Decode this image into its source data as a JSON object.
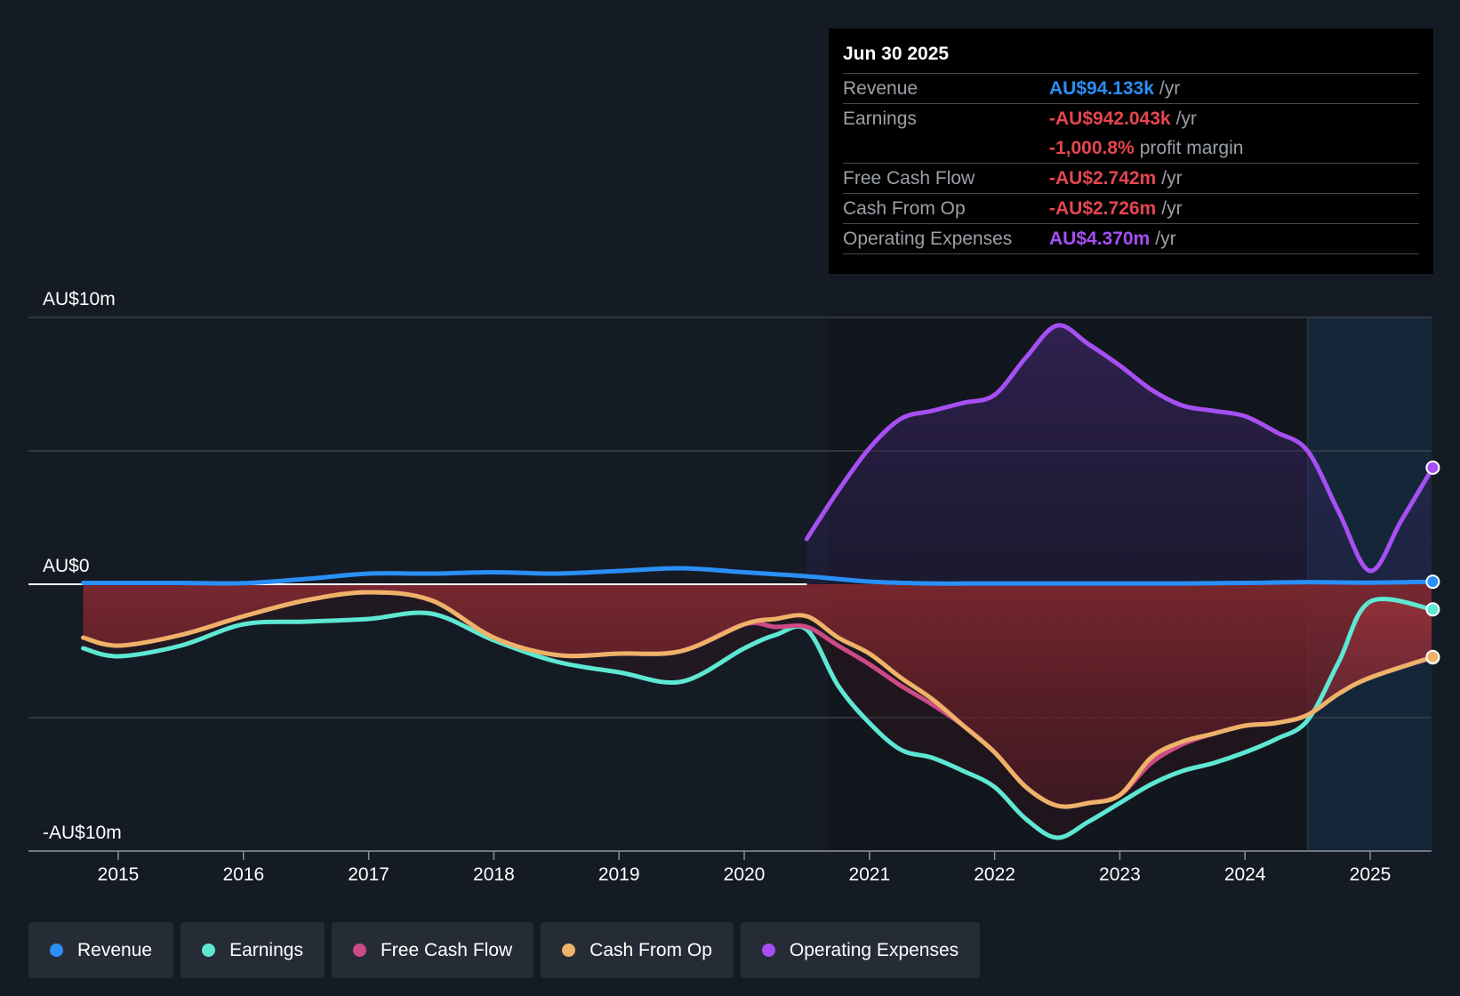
{
  "tooltip": {
    "date": "Jun 30 2025",
    "rows": [
      {
        "label": "Revenue",
        "value": "AU$94.133k",
        "unit": "/yr",
        "color": "#2a8ff7"
      },
      {
        "label": "Earnings",
        "value": "-AU$942.043k",
        "unit": "/yr",
        "color": "#e64650"
      },
      {
        "label": "",
        "value": "-1,000.8%",
        "unit": "profit margin",
        "color": "#e64650"
      },
      {
        "label": "Free Cash Flow",
        "value": "-AU$2.742m",
        "unit": "/yr",
        "color": "#e64650"
      },
      {
        "label": "Cash From Op",
        "value": "-AU$2.726m",
        "unit": "/yr",
        "color": "#e64650"
      },
      {
        "label": "Operating Expenses",
        "value": "AU$4.370m",
        "unit": "/yr",
        "color": "#a64ff2"
      }
    ]
  },
  "legend": [
    {
      "label": "Revenue",
      "color": "#2a8ff7"
    },
    {
      "label": "Earnings",
      "color": "#5ee8d4"
    },
    {
      "label": "Free Cash Flow",
      "color": "#cc4a86"
    },
    {
      "label": "Cash From Op",
      "color": "#eeb268"
    },
    {
      "label": "Operating Expenses",
      "color": "#a64ff2"
    }
  ],
  "chart_data": {
    "type": "line",
    "title": "",
    "xlabel": "",
    "ylabel": "",
    "y_unit": "AU$m",
    "ylim": [
      -10,
      10
    ],
    "xlim": [
      2014.3,
      2025.5
    ],
    "y_tick_labels": [
      {
        "value": 10,
        "label": "AU$10m"
      },
      {
        "value": 0,
        "label": "AU$0"
      },
      {
        "value": -10,
        "label": "-AU$10m"
      }
    ],
    "gridlines": [
      10,
      5,
      0,
      -5,
      -10
    ],
    "x_ticks": [
      2015,
      2016,
      2017,
      2018,
      2019,
      2020,
      2021,
      2022,
      2023,
      2024,
      2025
    ],
    "x_tick_labels": [
      "2015",
      "2016",
      "2017",
      "2018",
      "2019",
      "2020",
      "2021",
      "2022",
      "2023",
      "2024",
      "2025"
    ],
    "forecast_region_start": 2024.5,
    "series": [
      {
        "name": "Operating Expenses",
        "color": "#a64ff2",
        "fill": true,
        "points": [
          [
            2020.5,
            1.7
          ],
          [
            2020.75,
            3.5
          ],
          [
            2021.0,
            5.1
          ],
          [
            2021.25,
            6.2
          ],
          [
            2021.5,
            6.5
          ],
          [
            2021.75,
            6.8
          ],
          [
            2022.0,
            7.1
          ],
          [
            2022.25,
            8.5
          ],
          [
            2022.5,
            9.7
          ],
          [
            2022.75,
            9.0
          ],
          [
            2023.0,
            8.2
          ],
          [
            2023.25,
            7.3
          ],
          [
            2023.5,
            6.7
          ],
          [
            2023.75,
            6.5
          ],
          [
            2024.0,
            6.3
          ],
          [
            2024.25,
            5.7
          ],
          [
            2024.5,
            5.0
          ],
          [
            2024.75,
            2.7
          ],
          [
            2025.0,
            0.5
          ],
          [
            2025.25,
            2.4
          ],
          [
            2025.5,
            4.37
          ]
        ]
      },
      {
        "name": "Revenue",
        "color": "#2a8ff7",
        "fill": false,
        "points": [
          [
            2014.72,
            0.05
          ],
          [
            2015.0,
            0.05
          ],
          [
            2015.5,
            0.05
          ],
          [
            2016.0,
            0.04
          ],
          [
            2016.5,
            0.2
          ],
          [
            2017.0,
            0.4
          ],
          [
            2017.5,
            0.4
          ],
          [
            2018.0,
            0.45
          ],
          [
            2018.5,
            0.4
          ],
          [
            2019.0,
            0.5
          ],
          [
            2019.5,
            0.6
          ],
          [
            2020.0,
            0.45
          ],
          [
            2020.5,
            0.3
          ],
          [
            2021.0,
            0.1
          ],
          [
            2021.5,
            0.03
          ],
          [
            2022.0,
            0.03
          ],
          [
            2022.5,
            0.03
          ],
          [
            2023.0,
            0.03
          ],
          [
            2023.5,
            0.03
          ],
          [
            2024.0,
            0.05
          ],
          [
            2024.5,
            0.08
          ],
          [
            2025.0,
            0.06
          ],
          [
            2025.5,
            0.094
          ]
        ]
      },
      {
        "name": "Earnings",
        "color": "#5ee8d4",
        "fill": true,
        "points": [
          [
            2014.72,
            -2.4
          ],
          [
            2015.0,
            -2.7
          ],
          [
            2015.5,
            -2.3
          ],
          [
            2016.0,
            -1.5
          ],
          [
            2016.5,
            -1.4
          ],
          [
            2017.0,
            -1.3
          ],
          [
            2017.5,
            -1.1
          ],
          [
            2018.0,
            -2.1
          ],
          [
            2018.5,
            -2.9
          ],
          [
            2019.0,
            -3.3
          ],
          [
            2019.5,
            -3.65
          ],
          [
            2020.0,
            -2.4
          ],
          [
            2020.25,
            -1.9
          ],
          [
            2020.5,
            -1.7
          ],
          [
            2020.75,
            -3.8
          ],
          [
            2021.0,
            -5.2
          ],
          [
            2021.25,
            -6.2
          ],
          [
            2021.5,
            -6.5
          ],
          [
            2021.75,
            -7.0
          ],
          [
            2022.0,
            -7.6
          ],
          [
            2022.25,
            -8.8
          ],
          [
            2022.5,
            -9.5
          ],
          [
            2022.75,
            -8.9
          ],
          [
            2023.0,
            -8.2
          ],
          [
            2023.25,
            -7.5
          ],
          [
            2023.5,
            -7.0
          ],
          [
            2023.75,
            -6.7
          ],
          [
            2024.0,
            -6.3
          ],
          [
            2024.25,
            -5.8
          ],
          [
            2024.5,
            -5.1
          ],
          [
            2024.75,
            -2.9
          ],
          [
            2025.0,
            -0.65
          ],
          [
            2025.5,
            -0.942
          ]
        ]
      },
      {
        "name": "Free Cash Flow",
        "color": "#cc4a86",
        "fill": true,
        "points": [
          [
            2014.72,
            -2.0
          ],
          [
            2015.0,
            -2.3
          ],
          [
            2015.5,
            -1.9
          ],
          [
            2016.0,
            -1.2
          ],
          [
            2016.5,
            -0.6
          ],
          [
            2017.0,
            -0.3
          ],
          [
            2017.5,
            -0.6
          ],
          [
            2018.0,
            -2.0
          ],
          [
            2018.5,
            -2.65
          ],
          [
            2019.0,
            -2.6
          ],
          [
            2019.5,
            -2.5
          ],
          [
            2020.0,
            -1.5
          ],
          [
            2020.25,
            -1.6
          ],
          [
            2020.5,
            -1.6
          ],
          [
            2020.75,
            -2.3
          ],
          [
            2021.0,
            -3.0
          ],
          [
            2021.25,
            -3.8
          ],
          [
            2021.5,
            -4.5
          ],
          [
            2021.75,
            -5.3
          ],
          [
            2022.0,
            -6.3
          ],
          [
            2022.25,
            -7.6
          ],
          [
            2022.5,
            -8.3
          ],
          [
            2022.75,
            -8.2
          ],
          [
            2023.0,
            -7.9
          ],
          [
            2023.25,
            -6.7
          ],
          [
            2023.5,
            -6.0
          ],
          [
            2023.75,
            -5.6
          ],
          [
            2024.0,
            -5.3
          ],
          [
            2024.25,
            -5.2
          ],
          [
            2024.5,
            -4.9
          ],
          [
            2024.75,
            -4.1
          ],
          [
            2025.0,
            -3.5
          ],
          [
            2025.5,
            -2.742
          ]
        ]
      },
      {
        "name": "Cash From Op",
        "color": "#eeb268",
        "fill": true,
        "points": [
          [
            2014.72,
            -2.0
          ],
          [
            2015.0,
            -2.3
          ],
          [
            2015.5,
            -1.9
          ],
          [
            2016.0,
            -1.2
          ],
          [
            2016.5,
            -0.6
          ],
          [
            2017.0,
            -0.3
          ],
          [
            2017.5,
            -0.6
          ],
          [
            2018.0,
            -2.0
          ],
          [
            2018.5,
            -2.65
          ],
          [
            2019.0,
            -2.6
          ],
          [
            2019.5,
            -2.5
          ],
          [
            2020.0,
            -1.5
          ],
          [
            2020.25,
            -1.3
          ],
          [
            2020.5,
            -1.2
          ],
          [
            2020.75,
            -2.0
          ],
          [
            2021.0,
            -2.6
          ],
          [
            2021.25,
            -3.5
          ],
          [
            2021.5,
            -4.3
          ],
          [
            2021.75,
            -5.3
          ],
          [
            2022.0,
            -6.3
          ],
          [
            2022.25,
            -7.6
          ],
          [
            2022.5,
            -8.3
          ],
          [
            2022.75,
            -8.2
          ],
          [
            2023.0,
            -7.9
          ],
          [
            2023.25,
            -6.5
          ],
          [
            2023.5,
            -5.9
          ],
          [
            2023.75,
            -5.6
          ],
          [
            2024.0,
            -5.3
          ],
          [
            2024.25,
            -5.2
          ],
          [
            2024.5,
            -4.9
          ],
          [
            2024.75,
            -4.1
          ],
          [
            2025.0,
            -3.5
          ],
          [
            2025.5,
            -2.726
          ]
        ]
      }
    ]
  }
}
